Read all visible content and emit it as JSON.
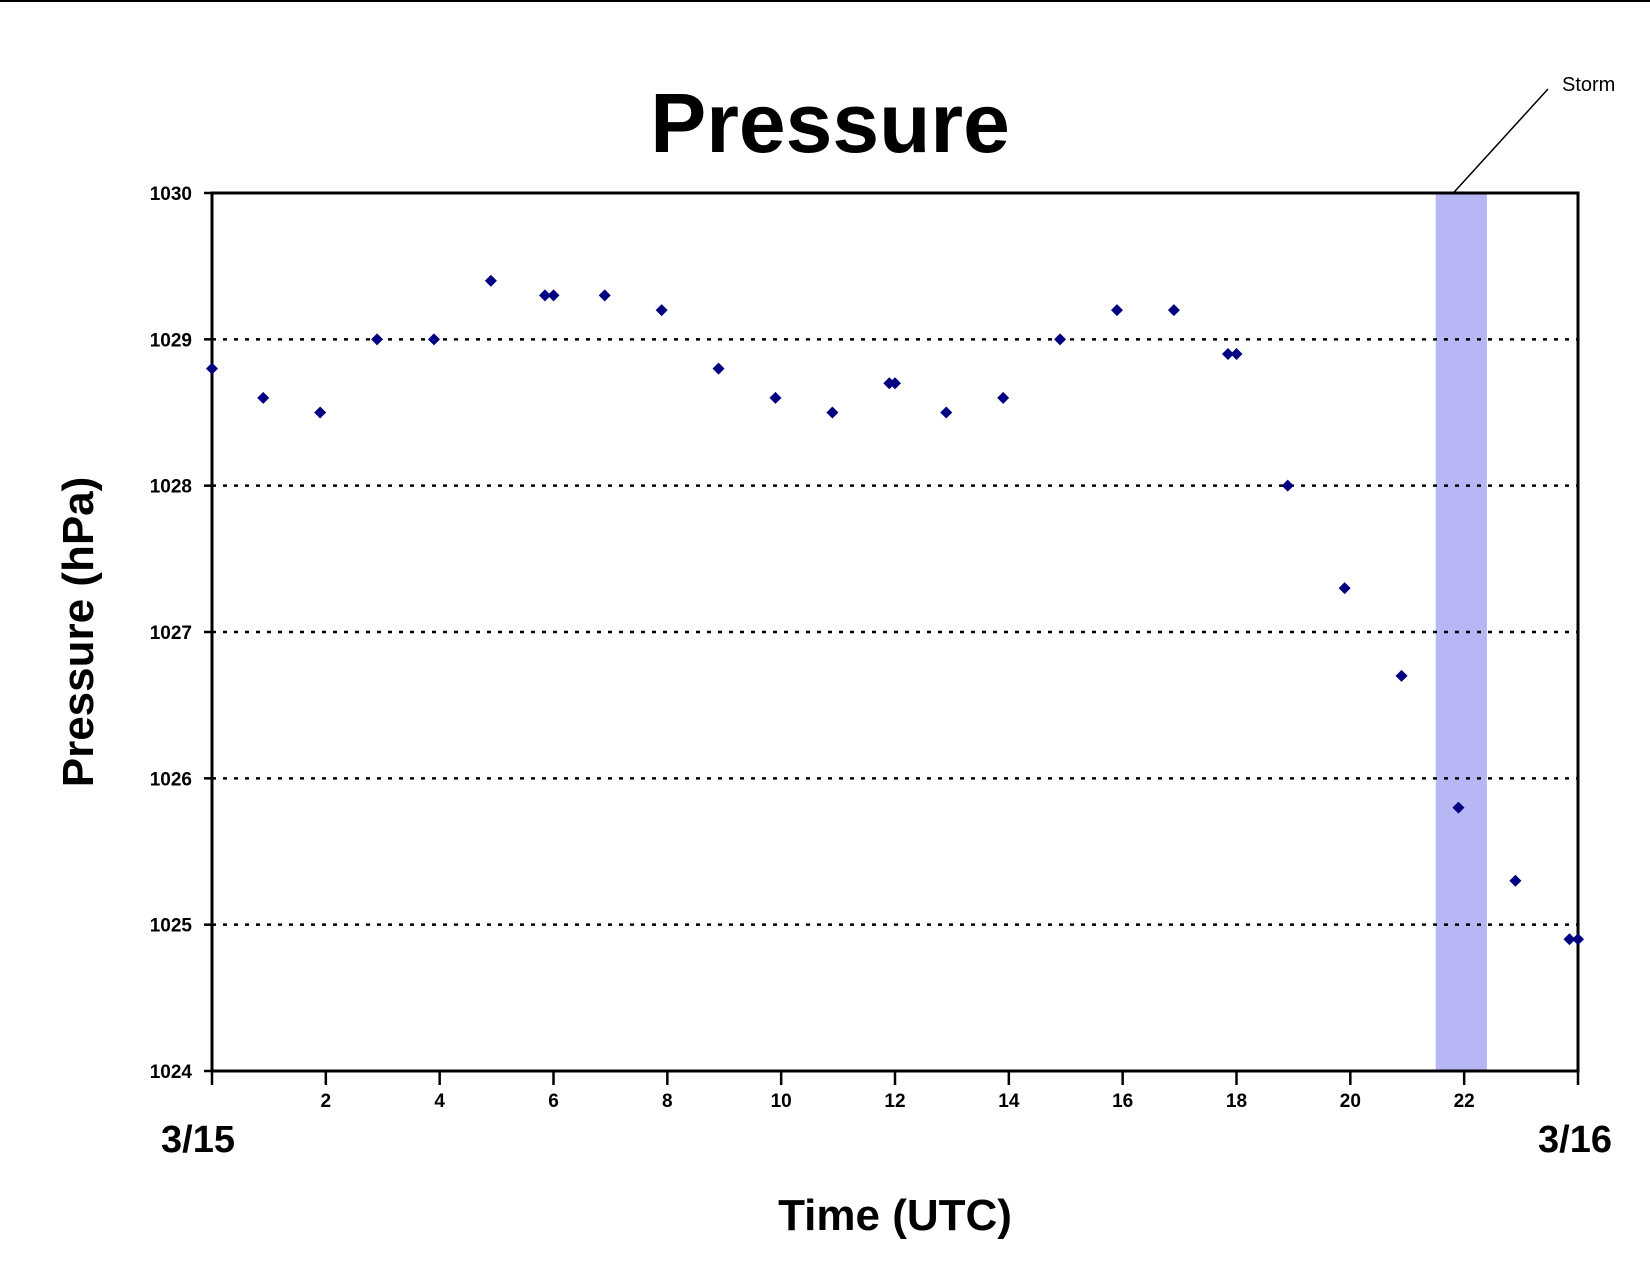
{
  "chart_data": {
    "type": "scatter",
    "title": "Pressure",
    "xlabel": "Time (UTC)",
    "ylabel": "Pressure (hPa)",
    "xlim": [
      0,
      24
    ],
    "ylim": [
      1024,
      1030
    ],
    "xticks": [
      0,
      2,
      4,
      6,
      8,
      10,
      12,
      14,
      16,
      18,
      20,
      22,
      24
    ],
    "xtick_labels": [
      "",
      "2",
      "4",
      "6",
      "8",
      "10",
      "12",
      "14",
      "16",
      "18",
      "20",
      "22",
      ""
    ],
    "yticks": [
      1024,
      1025,
      1026,
      1027,
      1028,
      1029,
      1030
    ],
    "ytick_labels": [
      "1024",
      "1025",
      "1026",
      "1027",
      "1028",
      "1029",
      "1030"
    ],
    "date_labels": {
      "start": "3/15",
      "end": "3/16"
    },
    "grid": "horizontal dotted",
    "marker_color": "#000080",
    "series": [
      {
        "points": [
          [
            0.0,
            1028.8
          ],
          [
            0.9,
            1028.6
          ],
          [
            1.9,
            1028.5
          ],
          [
            2.9,
            1029.0
          ],
          [
            3.9,
            1029.0
          ],
          [
            4.9,
            1029.4
          ],
          [
            5.85,
            1029.3
          ],
          [
            6.0,
            1029.3
          ],
          [
            6.9,
            1029.3
          ],
          [
            7.9,
            1029.2
          ],
          [
            8.9,
            1028.8
          ],
          [
            9.9,
            1028.6
          ],
          [
            10.9,
            1028.5
          ],
          [
            11.9,
            1028.7
          ],
          [
            12.0,
            1028.7
          ],
          [
            12.9,
            1028.5
          ],
          [
            13.9,
            1028.6
          ],
          [
            14.9,
            1029.0
          ],
          [
            15.9,
            1029.2
          ],
          [
            16.9,
            1029.2
          ],
          [
            17.85,
            1028.9
          ],
          [
            18.0,
            1028.9
          ],
          [
            18.9,
            1028.0
          ],
          [
            19.9,
            1027.3
          ],
          [
            20.9,
            1026.7
          ],
          [
            21.9,
            1025.8
          ],
          [
            22.9,
            1025.3
          ],
          [
            23.85,
            1024.9
          ],
          [
            24.0,
            1024.9
          ]
        ]
      }
    ],
    "annotations": [
      {
        "text": "Storm",
        "x_range": [
          21.5,
          22.4
        ],
        "color": "#b7b7f5"
      }
    ]
  }
}
